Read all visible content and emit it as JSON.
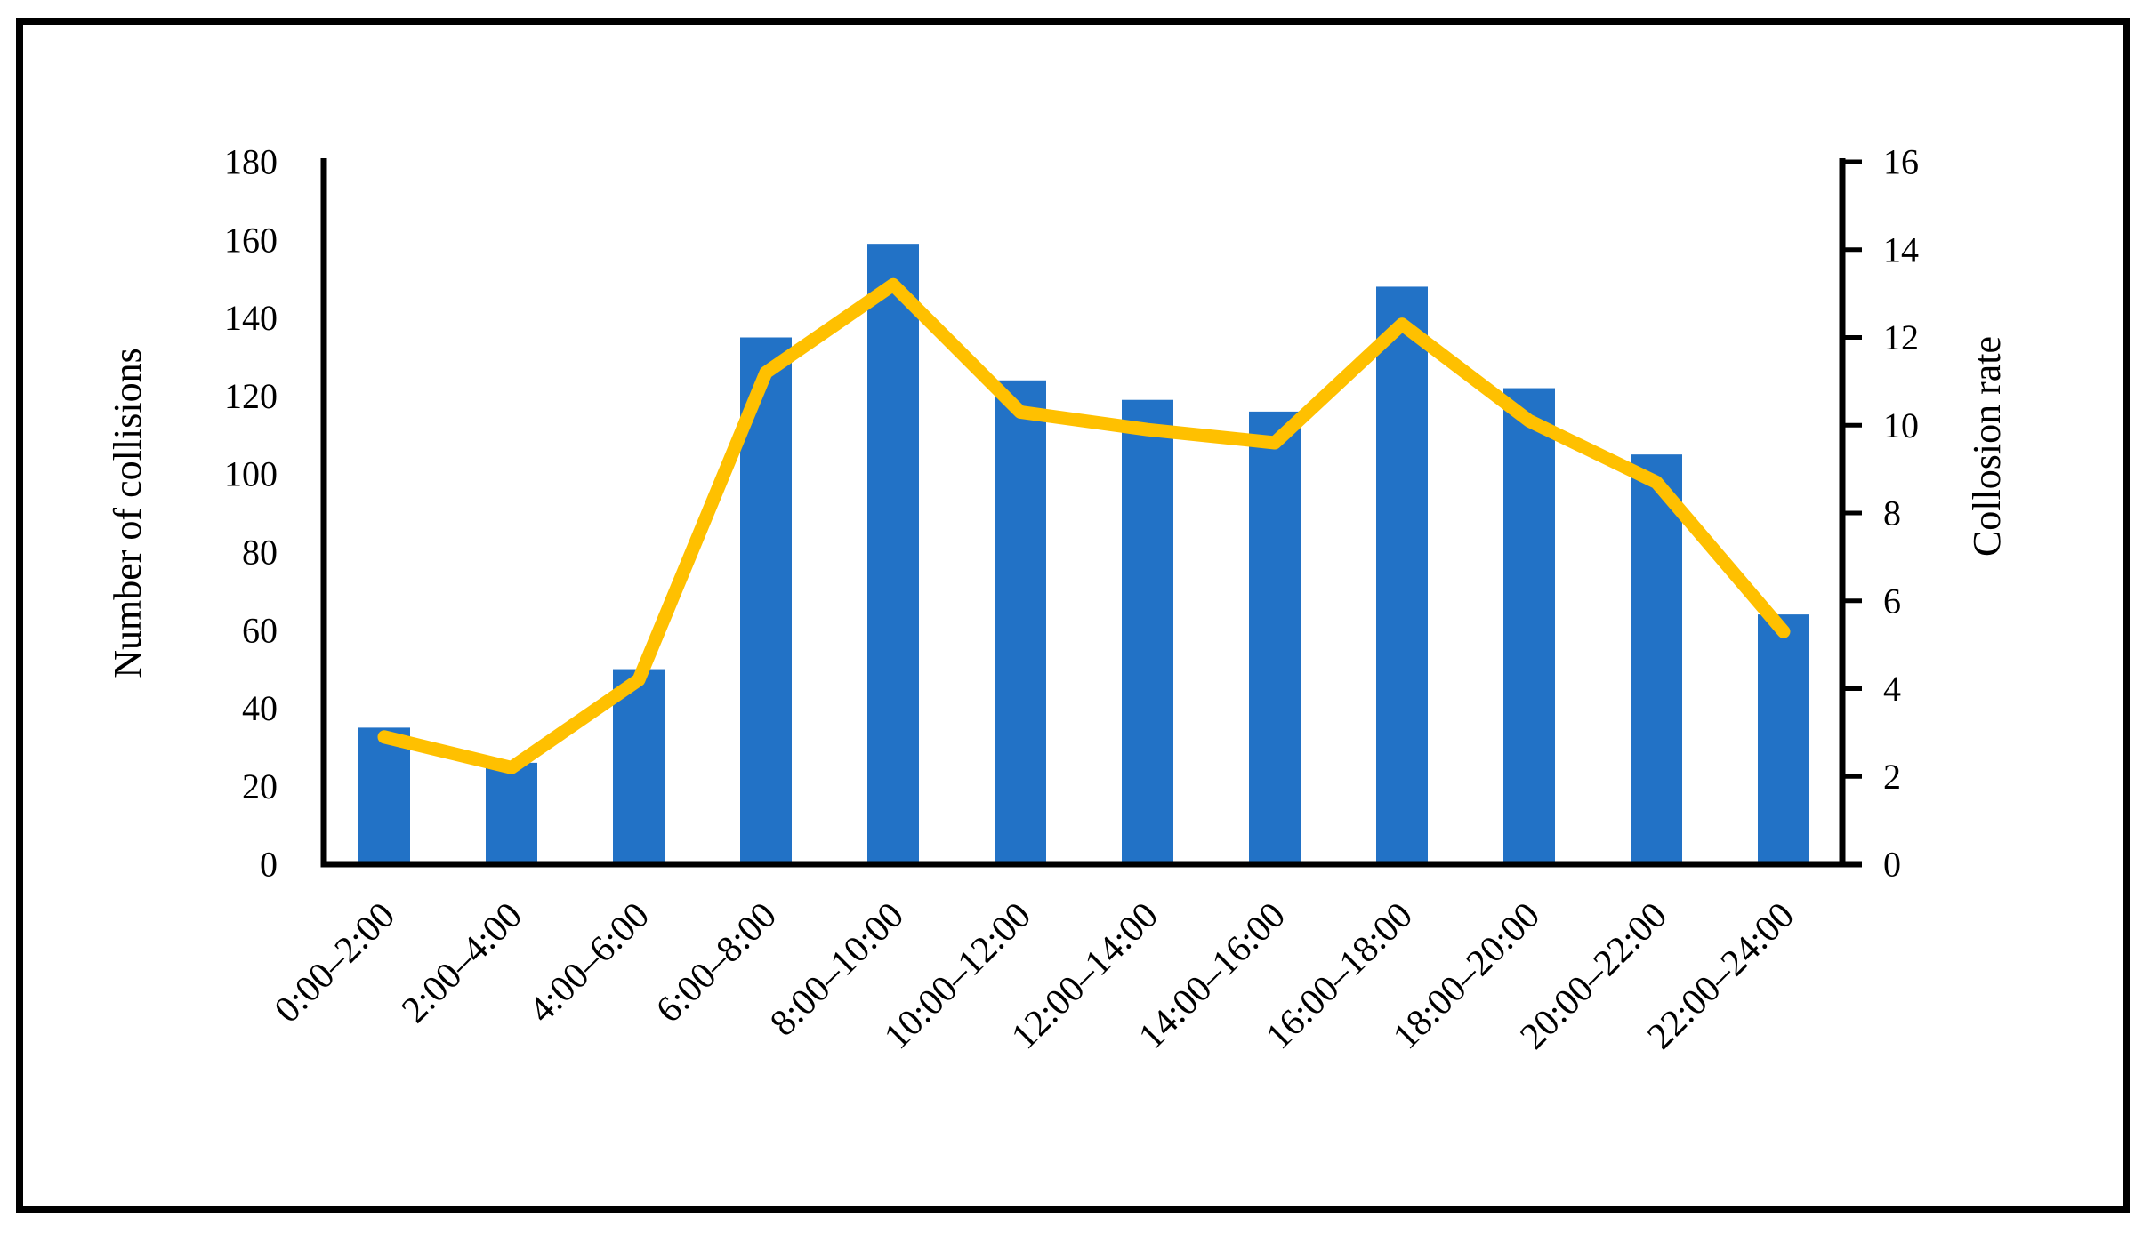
{
  "figure": {
    "background": "#FFFFFF",
    "border_color": "#000000"
  },
  "chart_data": {
    "type": "bar",
    "subtype": "bar+line-combo",
    "title": "",
    "categories": [
      "0:00–2:00",
      "2:00–4:00",
      "4:00–6:00",
      "6:00–8:00",
      "8:00–10:00",
      "10:00–12:00",
      "12:00–14:00",
      "14:00–16:00",
      "16:00–18:00",
      "18:00–20:00",
      "20:00–22:00",
      "22:00–24:00"
    ],
    "series": [
      {
        "name": "Number of collisions",
        "type": "bar",
        "axis": "left",
        "color": "#2272C6",
        "values": [
          35,
          26,
          50,
          135,
          159,
          124,
          119,
          116,
          148,
          122,
          105,
          64
        ]
      },
      {
        "name": "Collosion rate",
        "type": "line",
        "axis": "right",
        "color": "#FFC000",
        "values": [
          2.9,
          2.2,
          4.2,
          11.2,
          13.2,
          10.3,
          9.9,
          9.6,
          12.3,
          10.1,
          8.7,
          5.3
        ]
      }
    ],
    "left_axis": {
      "title": "Number of collisions",
      "min": 0,
      "max": 180,
      "step": 20,
      "tick_labels": [
        "0",
        "20",
        "40",
        "60",
        "80",
        "100",
        "120",
        "140",
        "160",
        "180"
      ]
    },
    "right_axis": {
      "title": "Collosion rate",
      "min": 0,
      "max": 16,
      "step": 2,
      "tick_labels": [
        "0",
        "2",
        "4",
        "6",
        "8",
        "10",
        "12",
        "14",
        "16"
      ]
    },
    "x_axis": {
      "tick_label_rotation_deg": -45
    },
    "grid": false,
    "legend": "none",
    "colors": {
      "bar": "#2272C6",
      "line": "#FFC000",
      "axis": "#000000",
      "text": "#000000",
      "background": "#FFFFFF",
      "border": "#000000"
    }
  }
}
